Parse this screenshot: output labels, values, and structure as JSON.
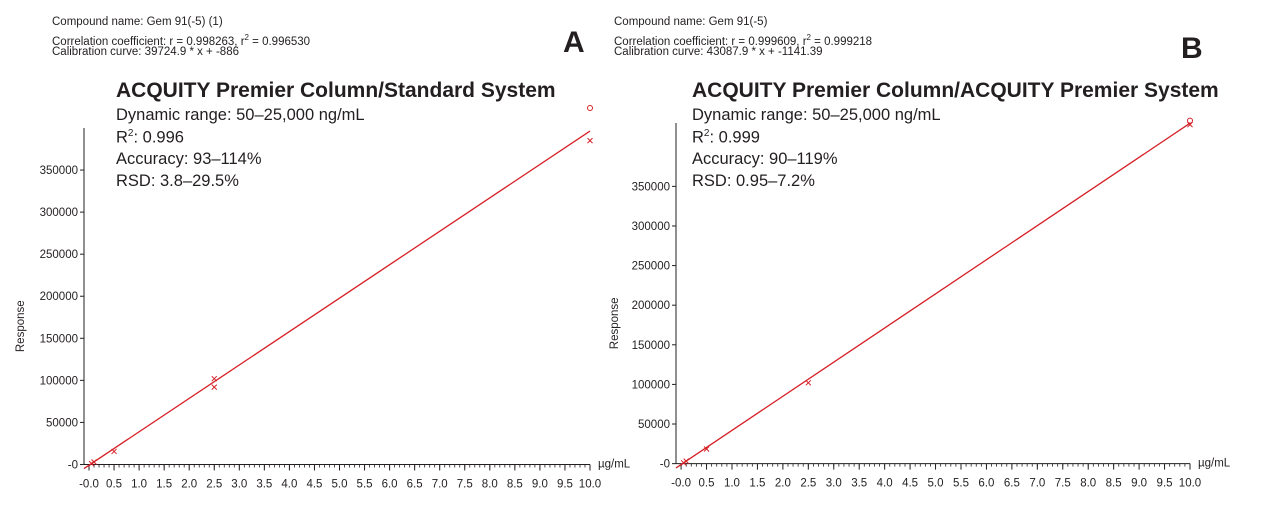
{
  "panels": [
    {
      "letter": "A",
      "header": {
        "compound": "Compound name: Gem 91(-5) (1)",
        "correlation_prefix": "Correlation coefficient: r = 0.998263, r",
        "correlation_sup": "2",
        "correlation_suffix": " = 0.996530",
        "calibration": "Calibration curve: 39724.9 * x + -886"
      },
      "title": "ACQUITY Premier Column/Standard System",
      "stats": {
        "dynamic_range": "Dynamic range: 50–25,000 ng/mL",
        "r2_prefix": "R",
        "r2_sup": "2",
        "r2_value": ": 0.996",
        "accuracy": "Accuracy: 93–114%",
        "rsd": "RSD: 3.8–29.5%"
      }
    },
    {
      "letter": "B",
      "header": {
        "compound": "Compound name: Gem 91(-5)",
        "correlation_prefix": "Correlation coefficient: r = 0.999609, r",
        "correlation_sup": "2",
        "correlation_suffix": " = 0.999218",
        "calibration": "Calibration curve: 43087.9 * x + -1141.39"
      },
      "title": "ACQUITY Premier Column/ACQUITY Premier System",
      "stats": {
        "dynamic_range": "Dynamic range: 50–25,000 ng/mL",
        "r2_prefix": "R",
        "r2_sup": "2",
        "r2_value": ": 0.999",
        "accuracy": "Accuracy: 90–119%",
        "rsd": "RSD: 0.95–7.2%"
      }
    }
  ],
  "chart_data": [
    {
      "type": "line",
      "ylabel": "Response",
      "xunit": "µg/mL",
      "xlim": [
        -0.1,
        10.0
      ],
      "ylim": [
        -3000,
        400000
      ],
      "xticks": [
        "-0.0",
        "0.5",
        "1.0",
        "1.5",
        "2.0",
        "2.5",
        "3.0",
        "3.5",
        "4.0",
        "4.5",
        "5.0",
        "5.5",
        "6.0",
        "6.5",
        "7.0",
        "7.5",
        "8.0",
        "8.5",
        "9.0",
        "9.5",
        "10.0"
      ],
      "yticks": [
        "0",
        "50000",
        "100000",
        "150000",
        "200000",
        "250000",
        "300000",
        "350000"
      ],
      "line_color": "#d62027",
      "fit": {
        "slope": 39724.9,
        "intercept": -886,
        "x": [
          -0.1,
          10.0
        ]
      },
      "points": [
        {
          "x": 0.05,
          "y": 1100
        },
        {
          "x": 0.1,
          "y": 2900
        },
        {
          "x": 0.5,
          "y": 15500
        },
        {
          "x": 2.5,
          "y": 92000
        },
        {
          "x": 2.5,
          "y": 102000
        },
        {
          "x": 10.0,
          "y": 385000
        },
        {
          "x": 10.0,
          "y": 438000
        }
      ]
    },
    {
      "type": "line",
      "ylabel": "Response",
      "xunit": "µg/mL",
      "xlim": [
        -0.1,
        10.0
      ],
      "ylim": [
        -3000,
        430000
      ],
      "xticks": [
        "-0.0",
        "0.5",
        "1.0",
        "1.5",
        "2.0",
        "2.5",
        "3.0",
        "3.5",
        "4.0",
        "4.5",
        "5.0",
        "5.5",
        "6.0",
        "6.5",
        "7.0",
        "7.5",
        "8.0",
        "8.5",
        "9.0",
        "9.5",
        "10.0"
      ],
      "yticks": [
        "0",
        "50000",
        "100000",
        "150000",
        "200000",
        "250000",
        "300000",
        "350000"
      ],
      "line_color": "#d62027",
      "fit": {
        "slope": 43087.9,
        "intercept": -1141.39,
        "x": [
          -0.1,
          10.0
        ]
      },
      "points": [
        {
          "x": 0.05,
          "y": 1000
        },
        {
          "x": 0.1,
          "y": 3200
        },
        {
          "x": 0.5,
          "y": 18500
        },
        {
          "x": 2.5,
          "y": 102000
        },
        {
          "x": 10.0,
          "y": 428000
        },
        {
          "x": 10.0,
          "y": 433000
        }
      ]
    }
  ]
}
